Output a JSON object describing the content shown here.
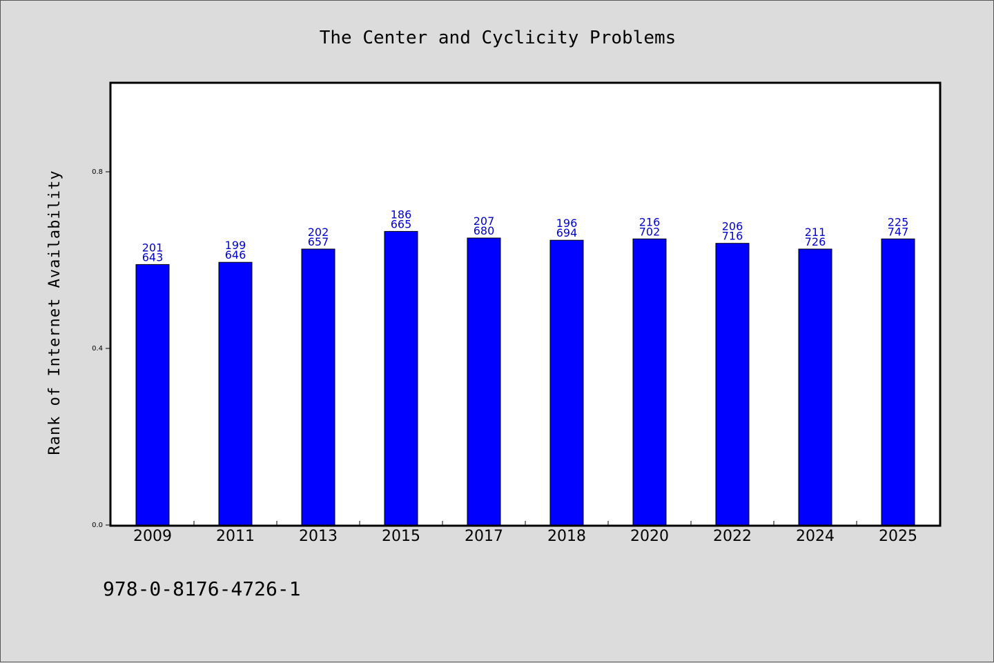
{
  "colors": {
    "background": "#dcdcdc",
    "plot_background": "#ffffff",
    "bar_fill": "#0000ff",
    "bar_label": "#0000cc",
    "axes": "#000000"
  },
  "footnote": "978-0-8176-4726-1",
  "chart_data": {
    "type": "bar",
    "title": "The Center and Cyclicity Problems",
    "xlabel": "",
    "ylabel": "Rank of Internet Availability",
    "categories": [
      "2009",
      "2011",
      "2013",
      "2015",
      "2017",
      "2018",
      "2020",
      "2022",
      "2024",
      "2025"
    ],
    "values": [
      0.59,
      0.595,
      0.625,
      0.665,
      0.65,
      0.645,
      0.648,
      0.638,
      0.625,
      0.648
    ],
    "bar_labels": [
      [
        "201",
        "643"
      ],
      [
        "199",
        "646"
      ],
      [
        "202",
        "657"
      ],
      [
        "186",
        "665"
      ],
      [
        "207",
        "680"
      ],
      [
        "196",
        "694"
      ],
      [
        "216",
        "702"
      ],
      [
        "206",
        "716"
      ],
      [
        "211",
        "726"
      ],
      [
        "225",
        "747"
      ]
    ],
    "yticks": [
      0.0,
      0.4,
      0.8
    ],
    "ytick_labels": [
      "0.0",
      "0.4",
      "0.8"
    ],
    "ylim": [
      0,
      1.0
    ],
    "grid": false,
    "legend": "none"
  }
}
